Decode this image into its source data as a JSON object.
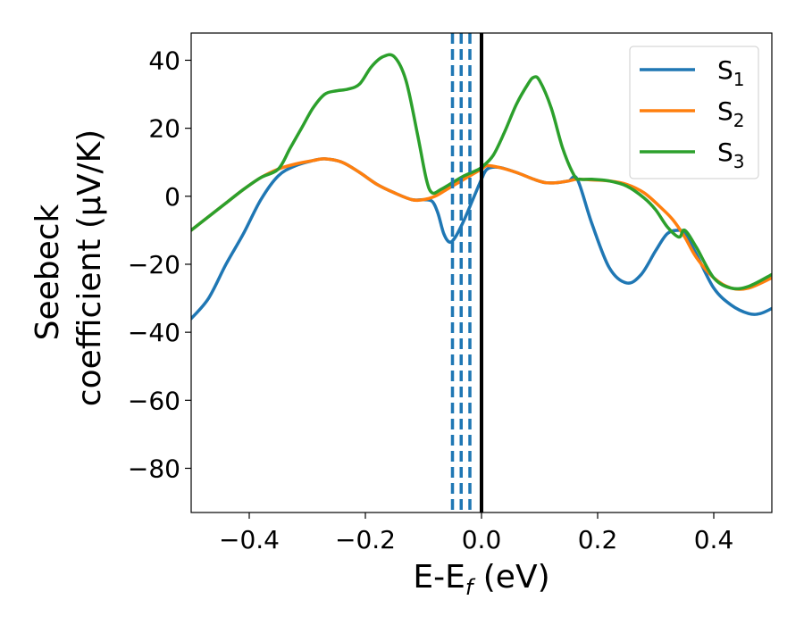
{
  "chart_data": {
    "type": "line",
    "xlabel": "E-E",
    "xlabel_sub": "f",
    "xlabel_unit": " (eV)",
    "ylabel_line1": "Seebeck",
    "ylabel_line2": "coefficient  (μV/K)",
    "xlim": [
      -0.5,
      0.5
    ],
    "ylim": [
      -93,
      48
    ],
    "xticks": [
      -0.4,
      -0.2,
      0.0,
      0.2,
      0.4
    ],
    "xtick_labels": [
      "−0.4",
      "−0.2",
      "0.0",
      "0.2",
      "0.4"
    ],
    "yticks": [
      40,
      20,
      0,
      -20,
      -40,
      -60,
      -80
    ],
    "ytick_labels": [
      "40",
      "20",
      "0",
      "−20",
      "−40",
      "−60",
      "−80"
    ],
    "grid": false,
    "legend_position": "top-right",
    "vlines": [
      {
        "x": -0.05,
        "color": "#1f77b4",
        "style": "dashed"
      },
      {
        "x": -0.035,
        "color": "#1f77b4",
        "style": "dashed"
      },
      {
        "x": -0.02,
        "color": "#1f77b4",
        "style": "dashed"
      },
      {
        "x": 0.0,
        "color": "#000000",
        "style": "solid"
      }
    ],
    "series": [
      {
        "name": "S",
        "sub": "1",
        "color": "#1f77b4",
        "x": [
          -0.5,
          -0.47,
          -0.44,
          -0.41,
          -0.38,
          -0.35,
          -0.32,
          -0.29,
          -0.27,
          -0.24,
          -0.21,
          -0.18,
          -0.15,
          -0.12,
          -0.1,
          -0.085,
          -0.075,
          -0.065,
          -0.055,
          -0.045,
          -0.03,
          -0.015,
          0.0,
          0.01,
          0.03,
          0.06,
          0.09,
          0.11,
          0.13,
          0.15,
          0.165,
          0.19,
          0.22,
          0.25,
          0.275,
          0.3,
          0.32,
          0.34,
          0.35,
          0.37,
          0.4,
          0.43,
          0.46,
          0.48,
          0.5
        ],
        "y": [
          -36,
          -30,
          -20,
          -11,
          -1,
          6,
          9,
          10.5,
          11,
          10,
          7,
          3.5,
          1,
          -1,
          -1,
          -1.5,
          -5,
          -11,
          -13.5,
          -12,
          -7,
          -1,
          5,
          8,
          8.5,
          7,
          5,
          4,
          4,
          4.5,
          5,
          -8,
          -21,
          -25.5,
          -23,
          -16,
          -11,
          -10,
          -11,
          -17,
          -27,
          -32,
          -34.5,
          -34.5,
          -33
        ]
      },
      {
        "name": "S",
        "sub": "2",
        "color": "#ff7f0e",
        "x": [
          -0.5,
          -0.47,
          -0.44,
          -0.41,
          -0.38,
          -0.35,
          -0.32,
          -0.29,
          -0.27,
          -0.24,
          -0.21,
          -0.18,
          -0.15,
          -0.12,
          -0.1,
          -0.08,
          -0.06,
          -0.04,
          -0.02,
          0.0,
          0.01,
          0.03,
          0.06,
          0.09,
          0.11,
          0.13,
          0.15,
          0.165,
          0.19,
          0.22,
          0.25,
          0.28,
          0.31,
          0.33,
          0.35,
          0.37,
          0.4,
          0.43,
          0.46,
          0.5
        ],
        "y": [
          -10,
          -6,
          -2,
          2,
          5.5,
          8,
          9.5,
          10.5,
          11,
          10,
          7,
          3.5,
          1,
          -1,
          -1,
          0,
          2,
          4,
          6,
          8,
          9,
          8.5,
          7,
          5,
          4,
          4,
          4.5,
          5,
          4.8,
          4.5,
          3.5,
          1,
          -3.5,
          -7,
          -12,
          -18,
          -24,
          -27,
          -27,
          -24
        ]
      },
      {
        "name": "S",
        "sub": "3",
        "color": "#2ca02c",
        "x": [
          -0.5,
          -0.47,
          -0.44,
          -0.41,
          -0.38,
          -0.35,
          -0.33,
          -0.31,
          -0.29,
          -0.27,
          -0.25,
          -0.23,
          -0.21,
          -0.19,
          -0.17,
          -0.15,
          -0.13,
          -0.11,
          -0.095,
          -0.085,
          -0.07,
          -0.05,
          -0.03,
          -0.01,
          0.0,
          0.02,
          0.04,
          0.06,
          0.08,
          0.09,
          0.1,
          0.12,
          0.14,
          0.16,
          0.17,
          0.19,
          0.22,
          0.25,
          0.28,
          0.3,
          0.32,
          0.34,
          0.35,
          0.37,
          0.4,
          0.43,
          0.46,
          0.5
        ],
        "y": [
          -10,
          -6,
          -2,
          2,
          5.5,
          8,
          14,
          20,
          26,
          30,
          31,
          31.5,
          33,
          38,
          41,
          41,
          34,
          18,
          5,
          1,
          2,
          4,
          6,
          7.5,
          8.5,
          12,
          19,
          27,
          33,
          35,
          34,
          26,
          14,
          6,
          5,
          5,
          4.5,
          3,
          -0.5,
          -4,
          -9,
          -12,
          -10,
          -15,
          -24,
          -27,
          -26.5,
          -23
        ]
      }
    ]
  }
}
